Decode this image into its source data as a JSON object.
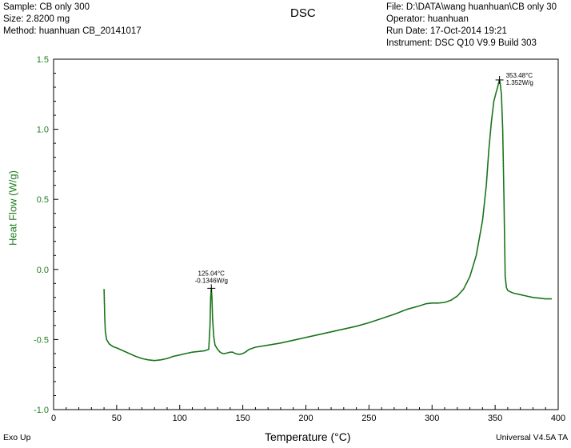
{
  "header": {
    "left_lines": [
      "Sample: CB only 300",
      "Size:  2.8200 mg",
      "Method: huanhuan CB_20141017"
    ],
    "right_lines": [
      "File: D:\\DATA\\wang huanhuan\\CB only 30",
      "Operator: huanhuan",
      "Run Date: 17-Oct-2014 19:21",
      "Instrument: DSC Q10 V9.9 Build 303"
    ]
  },
  "footer": {
    "left": "Exo Up",
    "right": "Universal V4.5A TA"
  },
  "colors": {
    "curve": "#1e7d1e",
    "axis_text": "#1e7d1e",
    "frame": "#000000"
  },
  "chart_data": {
    "type": "line",
    "title": "DSC",
    "xlabel": "Temperature (°C)",
    "ylabel": "Heat Flow (W/g)",
    "xlim": [
      0,
      400
    ],
    "ylim": [
      -1.0,
      1.5
    ],
    "xticks": [
      0,
      50,
      100,
      150,
      200,
      250,
      300,
      350,
      400
    ],
    "yticks": [
      -1.0,
      -0.5,
      0.0,
      0.5,
      1.0,
      1.5
    ],
    "ytick_labels": [
      "-1.0",
      "-0.5",
      "0.0",
      "0.5",
      "1.0",
      "1.5"
    ],
    "grid": false,
    "series": [
      {
        "x": [
          40,
          40.3,
          40.6,
          41,
          42,
          44,
          47,
          50,
          55,
          60,
          65,
          70,
          75,
          80,
          85,
          90,
          95,
          100,
          105,
          110,
          115,
          120,
          123,
          124,
          124.5,
          125.04,
          125.5,
          126,
          127,
          128,
          130,
          132,
          134,
          136,
          138,
          140,
          142,
          144,
          146,
          148,
          150,
          152,
          155,
          160,
          170,
          180,
          190,
          200,
          210,
          220,
          230,
          240,
          250,
          260,
          270,
          280,
          290,
          295,
          300,
          305,
          310,
          315,
          320,
          325,
          330,
          335,
          340,
          343,
          345,
          347,
          349,
          351,
          352,
          353,
          353.48,
          354,
          355,
          356,
          357,
          357.5,
          358,
          359,
          360,
          362,
          365,
          370,
          375,
          380,
          385,
          390,
          395
        ],
        "y": [
          -0.14,
          -0.25,
          -0.35,
          -0.44,
          -0.5,
          -0.53,
          -0.55,
          -0.56,
          -0.58,
          -0.6,
          -0.62,
          -0.635,
          -0.645,
          -0.65,
          -0.645,
          -0.635,
          -0.62,
          -0.61,
          -0.6,
          -0.59,
          -0.585,
          -0.58,
          -0.57,
          -0.4,
          -0.2,
          -0.1346,
          -0.2,
          -0.35,
          -0.48,
          -0.54,
          -0.57,
          -0.59,
          -0.6,
          -0.6,
          -0.595,
          -0.59,
          -0.59,
          -0.6,
          -0.605,
          -0.605,
          -0.6,
          -0.59,
          -0.57,
          -0.555,
          -0.54,
          -0.525,
          -0.505,
          -0.485,
          -0.465,
          -0.445,
          -0.425,
          -0.405,
          -0.38,
          -0.35,
          -0.32,
          -0.285,
          -0.26,
          -0.245,
          -0.24,
          -0.24,
          -0.235,
          -0.22,
          -0.19,
          -0.14,
          -0.05,
          0.1,
          0.35,
          0.6,
          0.85,
          1.05,
          1.2,
          1.27,
          1.3,
          1.34,
          1.352,
          1.33,
          1.25,
          1.0,
          0.5,
          0.2,
          -0.05,
          -0.13,
          -0.15,
          -0.16,
          -0.17,
          -0.18,
          -0.19,
          -0.2,
          -0.205,
          -0.21,
          -0.21
        ]
      }
    ],
    "annotations": [
      {
        "x": 125.04,
        "y": -0.1346,
        "line1": "125.04°C",
        "line2": "-0.1346W/g"
      },
      {
        "x": 353.48,
        "y": 1.352,
        "line1": "353.48°C",
        "line2": "1.352W/g"
      }
    ]
  }
}
